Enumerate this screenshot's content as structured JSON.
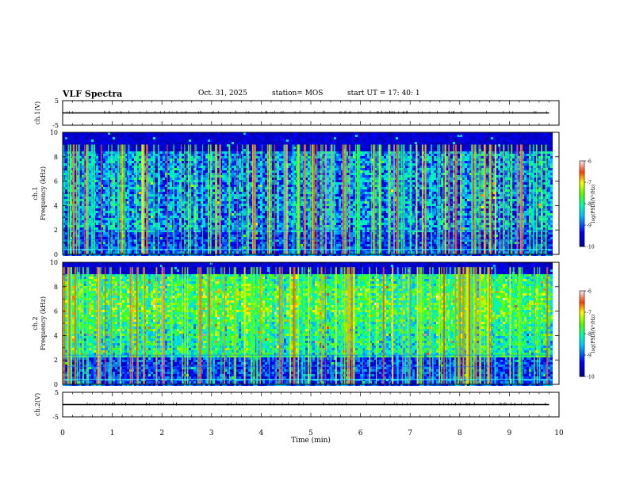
{
  "header": {
    "title": "VLF Spectra",
    "date": "Oct. 31, 2025",
    "station": "station= MOS",
    "start_ut": "start UT =   17: 40: 1"
  },
  "chart_data": [
    {
      "type": "line",
      "title": "",
      "ylabel": "ch.1(V)",
      "ylim": [
        -5,
        5
      ],
      "yticks": [
        "5",
        "-5"
      ],
      "x": [
        0,
        9.8
      ],
      "values": [
        0,
        0
      ],
      "xlim": [
        0,
        10
      ]
    },
    {
      "type": "heatmap",
      "ylabel_line1": "ch.1",
      "ylabel_line2": "Frequency (kHz)",
      "ylim": [
        0,
        10
      ],
      "yticks": [
        "0",
        "2",
        "4",
        "6",
        "8",
        "10"
      ],
      "xlim": [
        0,
        10
      ],
      "data_extent_min": 9.85,
      "colorbar": {
        "label": "log(PSD)(V²/Hz)",
        "range": [
          -10,
          -6
        ],
        "ticks": [
          "-6",
          "-7",
          "-8",
          "-9",
          "-10"
        ]
      },
      "noise_band_khz": [
        8.6,
        10
      ],
      "quiet_band_khz": [
        0,
        2
      ],
      "activity": "moderate"
    },
    {
      "type": "heatmap",
      "ylabel_line1": "ch.2",
      "ylabel_line2": "Frequency (kHz)",
      "ylim": [
        0,
        10
      ],
      "yticks": [
        "0",
        "2",
        "4",
        "6",
        "8",
        "10"
      ],
      "xlim": [
        0,
        10
      ],
      "data_extent_min": 9.85,
      "colorbar": {
        "label": "log(PSD)(V²/Hz)",
        "range": [
          -10,
          -6
        ],
        "ticks": [
          "-6",
          "-7",
          "-8",
          "-9",
          "-10"
        ]
      },
      "noise_band_khz": [
        9.2,
        10
      ],
      "quiet_band_khz": [
        0,
        2.4
      ],
      "activity": "high"
    },
    {
      "type": "line",
      "title": "",
      "ylabel": "ch.2(V)",
      "ylim": [
        -5,
        5
      ],
      "yticks": [
        "5",
        "-5"
      ],
      "x": [
        0,
        9.8
      ],
      "values": [
        0,
        0
      ],
      "xlim": [
        0,
        10
      ]
    }
  ],
  "xaxis": {
    "label": "Time (min)",
    "ticks": [
      "0",
      "1",
      "2",
      "3",
      "4",
      "5",
      "6",
      "7",
      "8",
      "9",
      "10"
    ]
  }
}
